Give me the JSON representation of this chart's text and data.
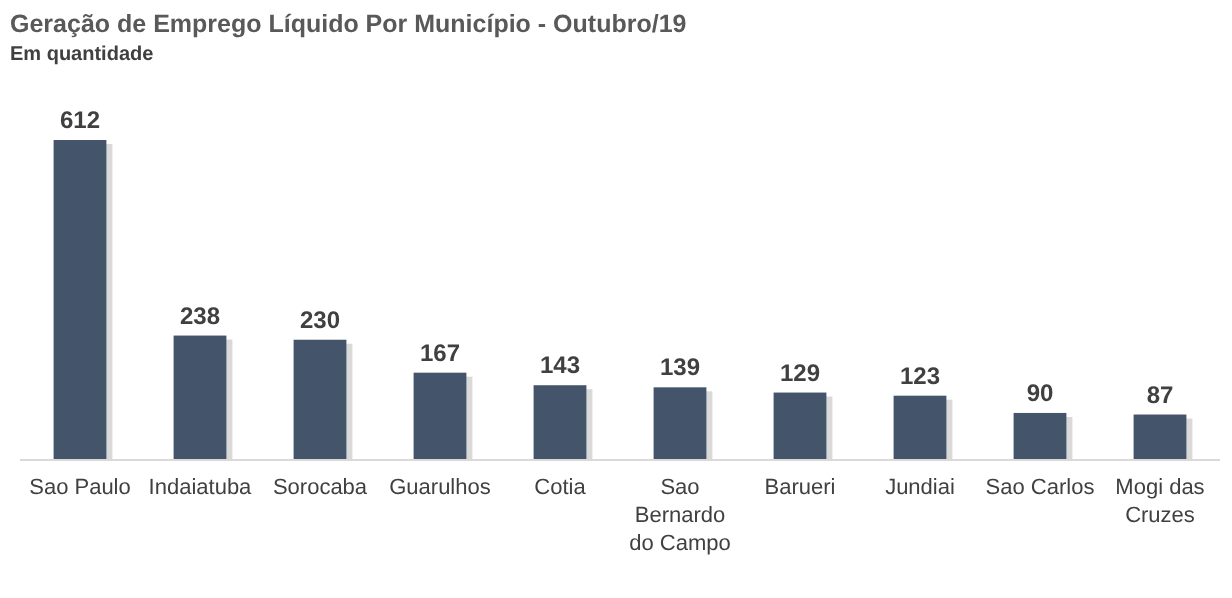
{
  "chart_data": {
    "type": "bar",
    "title": "Geração de Emprego Líquido Por Município  - Outubro/19",
    "subtitle": "Em quantidade",
    "categories": [
      "Sao Paulo",
      "Indaiatuba",
      "Sorocaba",
      "Guarulhos",
      "Cotia",
      "Sao Bernardo do Campo",
      "Barueri",
      "Jundiai",
      "Sao Carlos",
      "Mogi das Cruzes"
    ],
    "values": [
      612,
      238,
      230,
      167,
      143,
      139,
      129,
      123,
      90,
      87
    ],
    "color": "#44546a",
    "data_labels": true
  }
}
